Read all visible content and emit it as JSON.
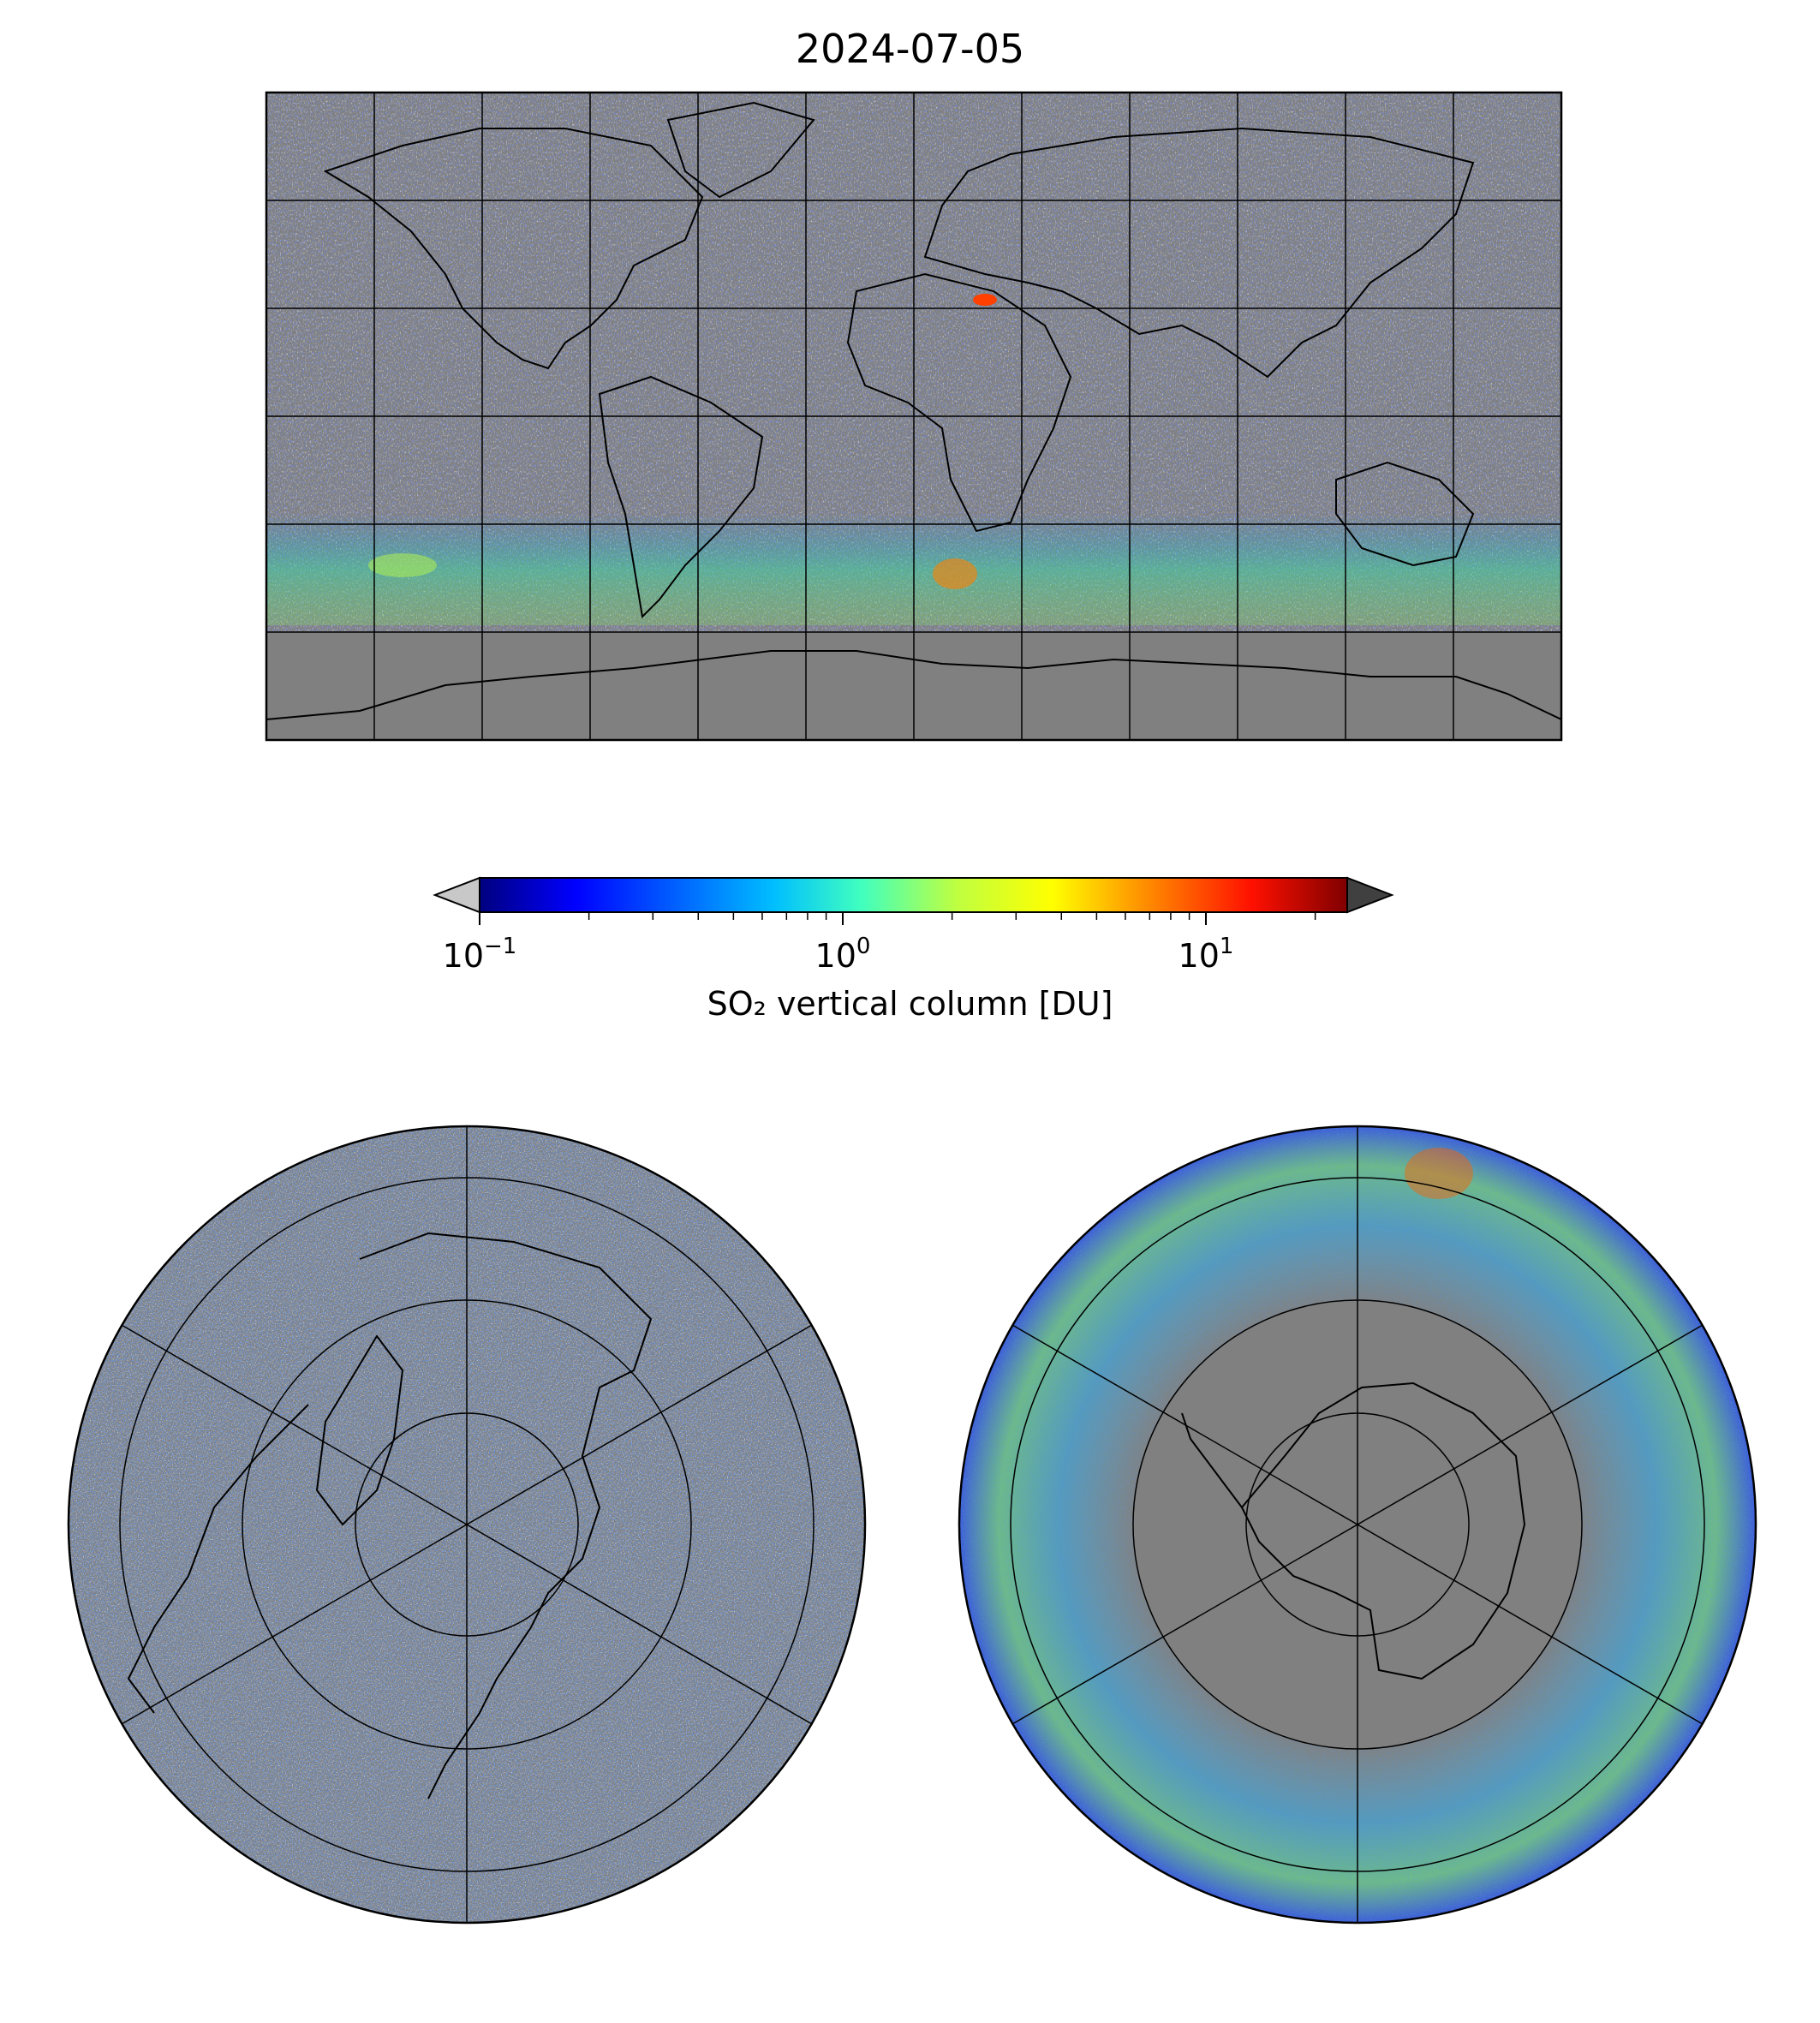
{
  "title": "2024-07-05",
  "colorbar": {
    "label": "SO₂ vertical column [DU]",
    "scale": "log",
    "range": [
      0.1,
      25
    ],
    "ticks": [
      {
        "base": "10",
        "exp": "−1",
        "value": 0.1
      },
      {
        "base": "10",
        "exp": "0",
        "value": 1
      },
      {
        "base": "10",
        "exp": "1",
        "value": 10
      }
    ],
    "colormap": "jet",
    "colors": [
      "#00007f",
      "#0000ff",
      "#007fff",
      "#00ffff",
      "#7fff7f",
      "#ffff00",
      "#ff7f00",
      "#ff0000",
      "#7f0000"
    ],
    "under_color": "#c8c8c8",
    "over_color": "#404040",
    "extend": "both"
  },
  "maps": {
    "global": {
      "projection": "equirectangular",
      "grid_lon_step": 30,
      "grid_lat_step": 30
    },
    "north": {
      "projection": "north-polar-stereographic"
    },
    "south": {
      "projection": "south-polar-stereographic"
    }
  },
  "colors": {
    "no_data": "#808080",
    "land_outline": "#000000",
    "grid": "#000000"
  }
}
